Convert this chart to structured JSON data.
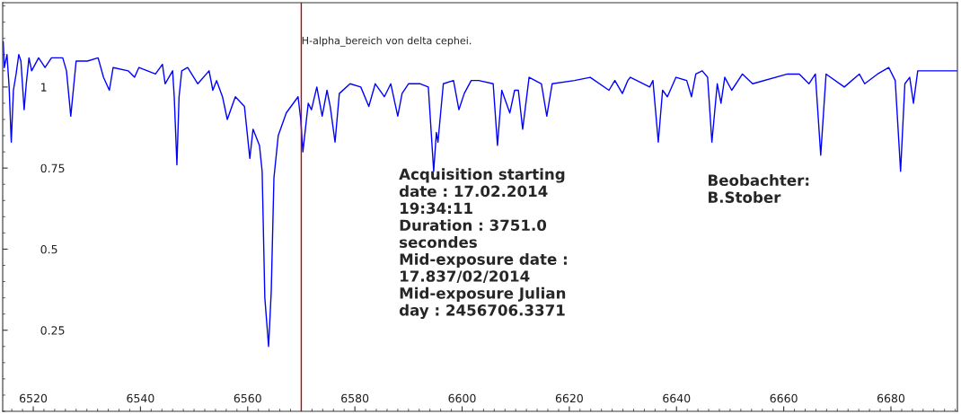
{
  "chart_data": {
    "type": "line",
    "title": "H-alpha_bereich von delta cephei.",
    "x": [
      6514.3,
      6514.4,
      6514.6,
      6515.1,
      6515.5,
      6515.9,
      6516.3,
      6516.8,
      6517.3,
      6517.7,
      6518.3,
      6518.7,
      6519.2,
      6519.7,
      6521.0,
      6522.2,
      6523.4,
      6525.5,
      6526.2,
      6527.0,
      6528.0,
      6530.1,
      6532.1,
      6533.1,
      6534.2,
      6534.9,
      6537.7,
      6538.9,
      6539.7,
      6542.8,
      6544.1,
      6544.6,
      6546.0,
      6546.3,
      6546.8,
      6547.2,
      6547.7,
      6548.8,
      6550.7,
      6552.8,
      6553.5,
      6554.2,
      6555.3,
      6556.2,
      6557.7,
      6559.4,
      6560.4,
      6561.0,
      6562.2,
      6562.7,
      6563.2,
      6563.9,
      6564.4,
      6564.9,
      6565.7,
      6567.2,
      6569.4,
      6569.9,
      6570.3,
      6571.3,
      6571.9,
      6572.9,
      6573.9,
      6574.8,
      6575.4,
      6576.3,
      6577.1,
      6579.1,
      6581.1,
      6582.6,
      6583.8,
      6585.5,
      6586.7,
      6588.0,
      6588.8,
      6590.0,
      6592.2,
      6593.7,
      6594.7,
      6595.2,
      6595.5,
      6596.5,
      6598.4,
      6599.4,
      6600.4,
      6601.7,
      6603.1,
      6605.8,
      6606.6,
      6607.4,
      6608.9,
      6609.8,
      6610.5,
      6611.3,
      6612.5,
      6614.8,
      6615.8,
      6616.8,
      6621.0,
      6623.9,
      6627.4,
      6628.5,
      6629.9,
      6630.9,
      6631.4,
      6635.0,
      6635.6,
      6636.6,
      6637.4,
      6638.3,
      6639.9,
      6641.9,
      6642.8,
      6643.6,
      6644.8,
      6645.8,
      6646.6,
      6647.6,
      6648.3,
      6649.0,
      6650.3,
      6652.3,
      6654.2,
      6660.7,
      6662.9,
      6664.7,
      6665.9,
      6666.9,
      6667.9,
      6671.3,
      6674.1,
      6675.1,
      6677.5,
      6679.6,
      6680.8,
      6681.8,
      6682.6,
      6683.5,
      6684.2,
      6685.0,
      6687.5,
      6692.3
    ],
    "series": [
      {
        "color": "#0000ff",
        "values": [
          1.14,
          1.14,
          1.06,
          1.1,
          1.0,
          0.83,
          0.99,
          1.04,
          1.1,
          1.08,
          0.93,
          1.01,
          1.09,
          1.05,
          1.09,
          1.06,
          1.09,
          1.09,
          1.05,
          0.91,
          1.08,
          1.08,
          1.09,
          1.03,
          0.99,
          1.06,
          1.05,
          1.03,
          1.06,
          1.04,
          1.07,
          1.01,
          1.05,
          0.97,
          0.76,
          0.97,
          1.05,
          1.06,
          1.01,
          1.05,
          0.99,
          1.02,
          0.97,
          0.9,
          0.97,
          0.94,
          0.78,
          0.87,
          0.82,
          0.74,
          0.35,
          0.2,
          0.37,
          0.72,
          0.85,
          0.92,
          0.97,
          0.9,
          0.8,
          0.95,
          0.93,
          1.0,
          0.91,
          0.99,
          0.94,
          0.83,
          0.98,
          1.01,
          1.0,
          0.94,
          1.01,
          0.97,
          1.01,
          0.91,
          0.98,
          1.01,
          1.01,
          1.0,
          0.74,
          0.86,
          0.83,
          1.01,
          1.02,
          0.93,
          0.98,
          1.02,
          1.02,
          1.01,
          0.82,
          0.99,
          0.92,
          0.99,
          0.99,
          0.87,
          1.03,
          1.01,
          0.91,
          1.01,
          1.02,
          1.03,
          0.99,
          1.02,
          0.98,
          1.02,
          1.03,
          1.0,
          1.02,
          0.83,
          0.99,
          0.97,
          1.03,
          1.02,
          0.97,
          1.04,
          1.05,
          1.03,
          0.83,
          1.01,
          0.95,
          1.03,
          0.99,
          1.04,
          1.01,
          1.04,
          1.04,
          1.01,
          1.04,
          0.79,
          1.04,
          1.0,
          1.04,
          1.01,
          1.04,
          1.06,
          1.02,
          0.74,
          1.01,
          1.03,
          0.95,
          1.05,
          1.05,
          1.05
        ]
      }
    ],
    "xlim": [
      6514.3,
      6692.4
    ],
    "xticks": [
      6520,
      6540,
      6560,
      6580,
      6600,
      6620,
      6640,
      6660,
      6680
    ],
    "ylim": [
      0,
      1.26
    ],
    "yticks": [
      0.25,
      0.5,
      0.75,
      1
    ],
    "ref_lines": [
      {
        "axis": "x",
        "value": 6570,
        "color": "#c00000"
      }
    ],
    "grid": false,
    "legend": false,
    "marker": "none",
    "line_style": "solid",
    "annotations": [
      "Acquisition starting\ndate : 17.02.2014\n19:34:11\nDuration : 3751.0\nsecondes\nMid-exposure date :\n17.837/02/2014\nMid-exposure Julian\nday : 2456706.3371",
      "Beobachter:\nB.Stober"
    ]
  }
}
